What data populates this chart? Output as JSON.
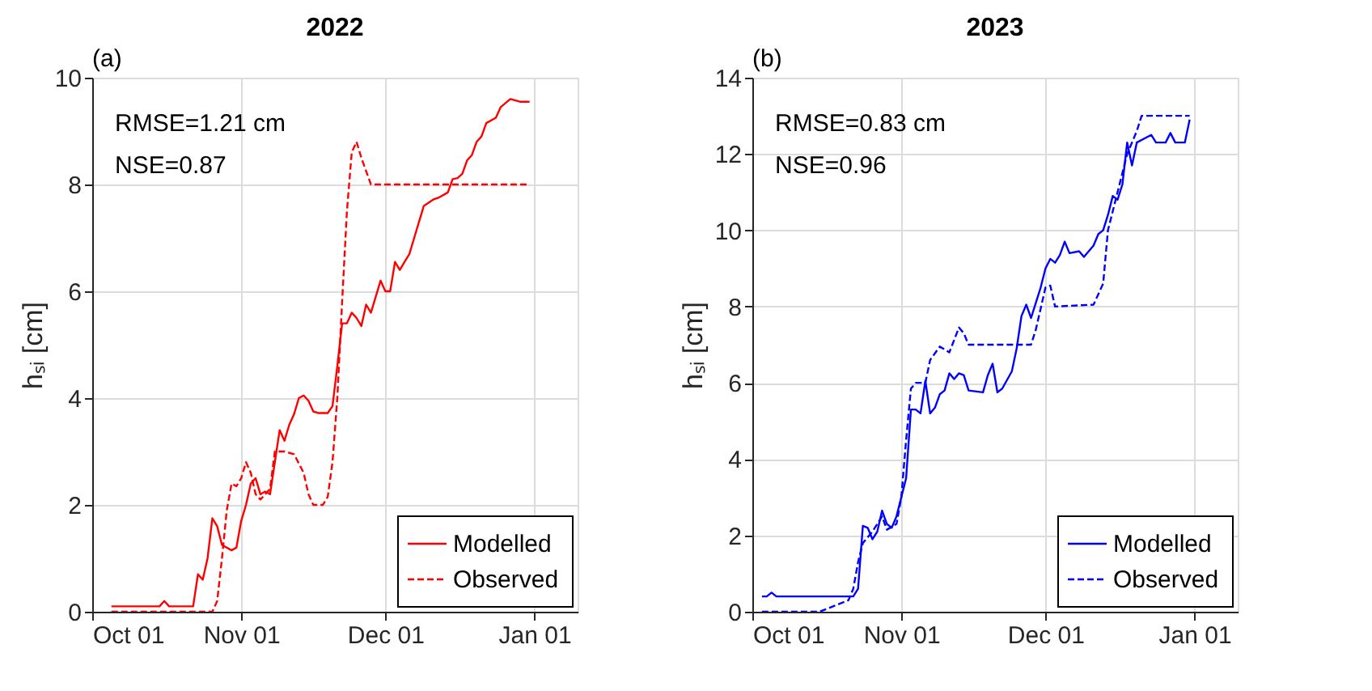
{
  "chart_data": [
    {
      "type": "line",
      "title": "2022",
      "ylabel": "hₛᵢ [cm]",
      "annotations": [
        "(a)",
        "RMSE=1.21 cm",
        "NSE=0.87"
      ],
      "legend": "bottom right",
      "grid": true,
      "xlim": [
        "2022-10-01",
        "2023-01-10"
      ],
      "xticks": [
        {
          "value": "2022-10-01",
          "label": "Oct 01"
        },
        {
          "value": "2022-11-01",
          "label": "Nov 01"
        },
        {
          "value": "2022-12-01",
          "label": "Dec 01"
        },
        {
          "value": "2023-01-01",
          "label": "Jan 01"
        }
      ],
      "ylim": [
        0,
        10
      ],
      "yticks": [
        0,
        2,
        4,
        6,
        8,
        10
      ],
      "series": [
        {
          "name": "Modelled",
          "color": "#ff0000",
          "line_style": "solid",
          "x": [
            "2022-10-05",
            "2022-10-15",
            "2022-10-16",
            "2022-10-17",
            "2022-10-21",
            "2022-10-22",
            "2022-10-23",
            "2022-10-24",
            "2022-10-25",
            "2022-10-26",
            "2022-10-27",
            "2022-10-28",
            "2022-10-30",
            "2022-10-31",
            "2022-11-01",
            "2022-11-02",
            "2022-11-03",
            "2022-11-04",
            "2022-11-05",
            "2022-11-06",
            "2022-11-07",
            "2022-11-08",
            "2022-11-09",
            "2022-11-10",
            "2022-11-11",
            "2022-11-12",
            "2022-11-13",
            "2022-11-14",
            "2022-11-15",
            "2022-11-16",
            "2022-11-17",
            "2022-11-19",
            "2022-11-20",
            "2022-11-21",
            "2022-11-22",
            "2022-11-23",
            "2022-11-24",
            "2022-11-25",
            "2022-11-26",
            "2022-11-27",
            "2022-11-28",
            "2022-11-30",
            "2022-12-01",
            "2022-12-02",
            "2022-12-03",
            "2022-12-04",
            "2022-12-05",
            "2022-12-06",
            "2022-12-07",
            "2022-12-09",
            "2022-12-11",
            "2022-12-12",
            "2022-12-14",
            "2022-12-15",
            "2022-12-16",
            "2022-12-17",
            "2022-12-18",
            "2022-12-19",
            "2022-12-20",
            "2022-12-21",
            "2022-12-22",
            "2022-12-24",
            "2022-12-25",
            "2022-12-27",
            "2022-12-29",
            "2022-12-31"
          ],
          "values": [
            0.1,
            0.1,
            0.2,
            0.1,
            0.1,
            0.1,
            0.7,
            0.6,
            1.0,
            1.75,
            1.6,
            1.25,
            1.15,
            1.2,
            1.7,
            2.0,
            2.4,
            2.5,
            2.2,
            2.25,
            2.2,
            2.8,
            3.4,
            3.2,
            3.5,
            3.7,
            4.0,
            4.05,
            3.95,
            3.75,
            3.72,
            3.72,
            3.85,
            4.6,
            5.4,
            5.4,
            5.6,
            5.5,
            5.35,
            5.75,
            5.6,
            6.2,
            6.0,
            6.0,
            6.55,
            6.4,
            6.55,
            6.7,
            7.0,
            7.6,
            7.72,
            7.75,
            7.85,
            8.1,
            8.12,
            8.2,
            8.45,
            8.55,
            8.8,
            8.9,
            9.15,
            9.25,
            9.45,
            9.6,
            9.55,
            9.55
          ]
        },
        {
          "name": "Observed",
          "color": "#ff0000",
          "line_style": "dashed",
          "x": [
            "2022-10-05",
            "2022-10-26",
            "2022-10-27",
            "2022-10-28",
            "2022-10-29",
            "2022-10-30",
            "2022-10-31",
            "2022-11-01",
            "2022-11-02",
            "2022-11-03",
            "2022-11-04",
            "2022-11-05",
            "2022-11-07",
            "2022-11-08",
            "2022-11-10",
            "2022-11-12",
            "2022-11-14",
            "2022-11-15",
            "2022-11-16",
            "2022-11-18",
            "2022-11-19",
            "2022-11-20",
            "2022-11-21",
            "2022-11-22",
            "2022-11-23",
            "2022-11-24",
            "2022-11-25",
            "2022-11-26",
            "2022-11-28",
            "2022-12-31"
          ],
          "values": [
            0,
            0,
            0.2,
            1.0,
            1.9,
            2.4,
            2.35,
            2.5,
            2.8,
            2.6,
            2.2,
            2.1,
            2.3,
            3.0,
            3.0,
            2.95,
            2.6,
            2.2,
            2.0,
            2.0,
            2.15,
            2.8,
            4.0,
            5.8,
            7.5,
            8.6,
            8.8,
            8.5,
            8.0,
            8.0
          ]
        }
      ]
    },
    {
      "type": "line",
      "title": "2023",
      "ylabel": "hₛᵢ [cm]",
      "annotations": [
        "(b)",
        "RMSE=0.83 cm",
        "NSE=0.96"
      ],
      "legend": "bottom right",
      "grid": true,
      "xlim": [
        "2023-10-01",
        "2024-01-10"
      ],
      "xticks": [
        {
          "value": "2023-10-01",
          "label": "Oct 01"
        },
        {
          "value": "2023-11-01",
          "label": "Nov 01"
        },
        {
          "value": "2023-12-01",
          "label": "Dec 01"
        },
        {
          "value": "2024-01-01",
          "label": "Jan 01"
        }
      ],
      "ylim": [
        0,
        14
      ],
      "yticks": [
        0,
        2,
        4,
        6,
        8,
        10,
        12,
        14
      ],
      "series": [
        {
          "name": "Modelled",
          "color": "#0000ff",
          "line_style": "solid",
          "x": [
            "2023-10-03",
            "2023-10-04",
            "2023-10-05",
            "2023-10-06",
            "2023-10-22",
            "2023-10-23",
            "2023-10-24",
            "2023-10-25",
            "2023-10-26",
            "2023-10-27",
            "2023-10-28",
            "2023-10-29",
            "2023-10-30",
            "2023-10-31",
            "2023-11-01",
            "2023-11-02",
            "2023-11-03",
            "2023-11-04",
            "2023-11-05",
            "2023-11-06",
            "2023-11-07",
            "2023-11-08",
            "2023-11-09",
            "2023-11-10",
            "2023-11-11",
            "2023-11-12",
            "2023-11-13",
            "2023-11-14",
            "2023-11-15",
            "2023-11-18",
            "2023-11-19",
            "2023-11-20",
            "2023-11-21",
            "2023-11-22",
            "2023-11-24",
            "2023-11-25",
            "2023-11-26",
            "2023-11-27",
            "2023-11-28",
            "2023-11-29",
            "2023-11-30",
            "2023-12-01",
            "2023-12-02",
            "2023-12-03",
            "2023-12-04",
            "2023-12-05",
            "2023-12-06",
            "2023-12-08",
            "2023-12-09",
            "2023-12-11",
            "2023-12-12",
            "2023-12-13",
            "2023-12-14",
            "2023-12-15",
            "2023-12-16",
            "2023-12-17",
            "2023-12-18",
            "2023-12-19",
            "2023-12-20",
            "2023-12-23",
            "2023-12-24",
            "2023-12-26",
            "2023-12-27",
            "2023-12-28",
            "2023-12-30",
            "2023-12-31"
          ],
          "values": [
            0.4,
            0.4,
            0.5,
            0.4,
            0.4,
            0.6,
            2.25,
            2.2,
            1.9,
            2.1,
            2.65,
            2.3,
            2.2,
            2.5,
            3.0,
            3.5,
            5.3,
            5.3,
            5.2,
            6.05,
            5.2,
            5.35,
            5.7,
            5.8,
            6.25,
            6.1,
            6.25,
            6.2,
            5.8,
            5.75,
            6.2,
            6.5,
            5.75,
            5.85,
            6.3,
            6.9,
            7.75,
            8.05,
            7.7,
            8.1,
            8.5,
            9.0,
            9.25,
            9.15,
            9.35,
            9.7,
            9.4,
            9.45,
            9.3,
            9.6,
            9.9,
            10.0,
            10.4,
            10.9,
            10.8,
            11.2,
            12.3,
            11.7,
            12.3,
            12.5,
            12.3,
            12.3,
            12.55,
            12.3,
            12.3,
            12.9
          ]
        },
        {
          "name": "Observed",
          "color": "#0000ff",
          "line_style": "dashed",
          "x": [
            "2023-10-03",
            "2023-10-15",
            "2023-10-18",
            "2023-10-21",
            "2023-10-22",
            "2023-10-23",
            "2023-10-24",
            "2023-10-26",
            "2023-10-28",
            "2023-10-29",
            "2023-10-31",
            "2023-11-01",
            "2023-11-02",
            "2023-11-03",
            "2023-11-04",
            "2023-11-06",
            "2023-11-07",
            "2023-11-09",
            "2023-11-11",
            "2023-11-13",
            "2023-11-14",
            "2023-11-15",
            "2023-11-28",
            "2023-11-29",
            "2023-12-01",
            "2023-12-02",
            "2023-12-03",
            "2023-12-11",
            "2023-12-13",
            "2023-12-14",
            "2023-12-16",
            "2023-12-18",
            "2023-12-20",
            "2023-12-21",
            "2023-12-31"
          ],
          "values": [
            0,
            0,
            0.15,
            0.3,
            0.6,
            1.3,
            1.8,
            2.1,
            2.5,
            2.15,
            2.3,
            3.0,
            4.5,
            5.85,
            6.0,
            6.0,
            6.6,
            6.95,
            6.8,
            7.45,
            7.3,
            7.0,
            7.0,
            7.4,
            8.5,
            8.55,
            8.0,
            8.05,
            8.6,
            10.0,
            11.0,
            12.0,
            12.6,
            13.0,
            13.0
          ]
        }
      ]
    }
  ]
}
